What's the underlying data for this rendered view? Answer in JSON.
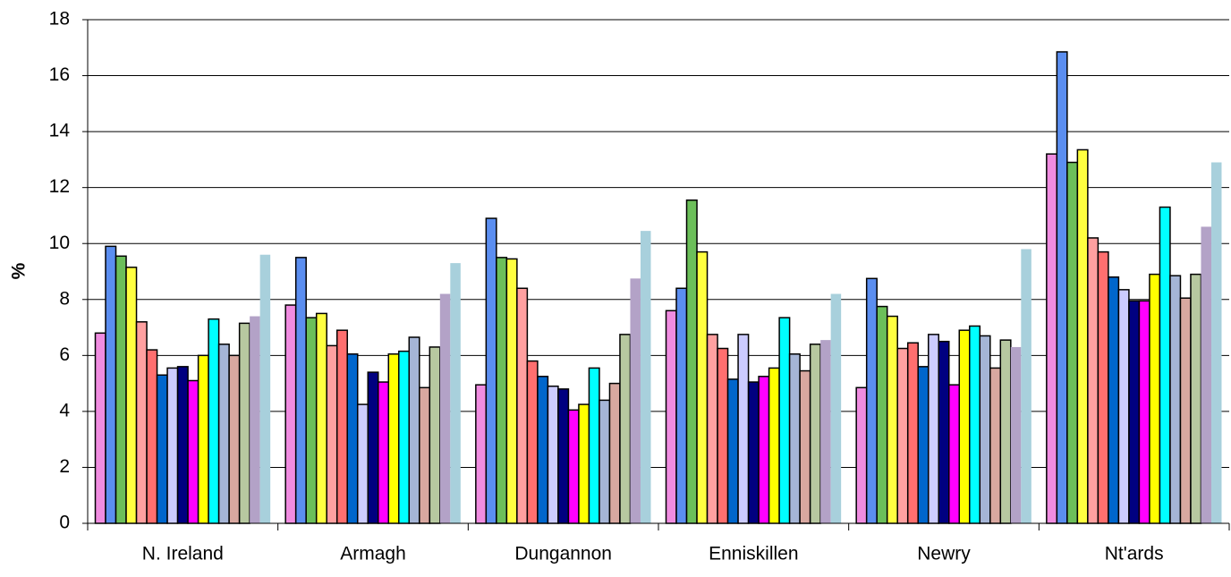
{
  "chart_data": {
    "type": "bar",
    "y_label": "%",
    "categories": [
      "N. Ireland",
      "Armagh",
      "Dungannon",
      "Enniskillen",
      "Newry",
      "Nt'ards"
    ],
    "series": [
      {
        "color": "#f08ce0",
        "values": [
          6.8,
          7.8,
          4.95,
          7.6,
          4.85,
          13.2
        ]
      },
      {
        "color": "#5b8ef0",
        "values": [
          9.9,
          9.5,
          10.9,
          8.4,
          8.75,
          16.85
        ]
      },
      {
        "color": "#6cbf5a",
        "values": [
          9.55,
          7.35,
          9.5,
          11.55,
          7.75,
          12.9
        ]
      },
      {
        "color": "#ffff40",
        "values": [
          9.15,
          7.5,
          9.45,
          9.7,
          7.4,
          13.35
        ]
      },
      {
        "color": "#ffa0a0",
        "values": [
          7.2,
          6.35,
          8.4,
          6.75,
          6.25,
          10.2
        ]
      },
      {
        "color": "#ff6f6f",
        "values": [
          6.2,
          6.9,
          5.8,
          6.25,
          6.45,
          9.7
        ]
      },
      {
        "color": "#0066cc",
        "values": [
          5.3,
          6.05,
          5.25,
          5.15,
          5.6,
          8.8
        ]
      },
      {
        "color": "#ccccff",
        "values": [
          5.55,
          4.25,
          4.9,
          6.75,
          6.75,
          8.35
        ]
      },
      {
        "color": "#000080",
        "values": [
          5.6,
          5.4,
          4.8,
          5.05,
          6.5,
          7.95
        ]
      },
      {
        "color": "#ff00ff",
        "values": [
          5.1,
          5.05,
          4.05,
          5.25,
          4.95,
          7.95
        ]
      },
      {
        "color": "#ffff00",
        "values": [
          6.0,
          6.05,
          4.25,
          5.55,
          6.9,
          8.9
        ]
      },
      {
        "color": "#00ffff",
        "values": [
          7.3,
          6.15,
          5.55,
          7.35,
          7.05,
          11.3
        ]
      },
      {
        "color": "#a5b5d6",
        "values": [
          6.4,
          6.65,
          4.4,
          6.05,
          6.7,
          8.85
        ]
      },
      {
        "color": "#d8a8a0",
        "values": [
          6.0,
          4.85,
          5.0,
          5.45,
          5.55,
          8.05
        ]
      },
      {
        "color": "#b7c8a0",
        "values": [
          7.15,
          6.3,
          6.75,
          6.4,
          6.55,
          8.9
        ]
      },
      {
        "color": "#b3a2c7",
        "values": [
          7.4,
          8.2,
          8.75,
          6.55,
          6.3,
          10.6
        ]
      },
      {
        "color": "#a8d0dc",
        "values": [
          9.6,
          9.3,
          10.45,
          8.2,
          9.8,
          12.9
        ]
      }
    ],
    "ylim": [
      0,
      18
    ],
    "yticks": [
      0,
      2,
      4,
      6,
      8,
      10,
      12,
      14,
      16,
      18
    ],
    "grid": true
  }
}
